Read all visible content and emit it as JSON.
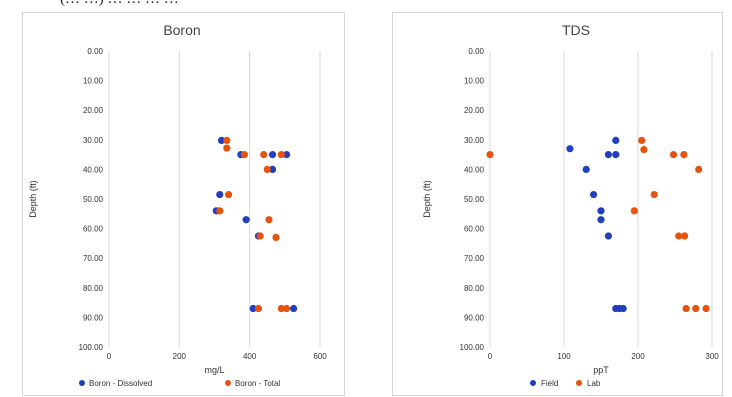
{
  "header_fragment": "(… …) … … … …",
  "colors": {
    "series_a": "#1f3fbf",
    "series_b": "#e5530f",
    "grid": "#d9d9d9"
  },
  "chart_data": [
    {
      "type": "scatter",
      "title": "Boron",
      "xlabel": "mg/L",
      "ylabel": "Depth (ft)",
      "xlim": [
        0,
        600
      ],
      "ylim": [
        100,
        0
      ],
      "y_inverted": true,
      "x_ticks": [
        "0",
        "200",
        "400",
        "600"
      ],
      "y_ticks": [
        "0.00",
        "10.00",
        "20.00",
        "30.00",
        "40.00",
        "50.00",
        "60.00",
        "70.00",
        "80.00",
        "90.00",
        "100.00"
      ],
      "grid": "vertical",
      "legend_position": "bottom",
      "series": [
        {
          "name": "Boron - Dissolved",
          "color": "#1f3fbf",
          "points": [
            [
              320,
              30.2
            ],
            [
              375,
              35
            ],
            [
              465,
              35
            ],
            [
              505,
              35
            ],
            [
              465,
              40
            ],
            [
              315,
              48.5
            ],
            [
              305,
              54
            ],
            [
              390,
              57
            ],
            [
              425,
              62.5
            ],
            [
              410,
              87
            ],
            [
              525,
              87
            ]
          ]
        },
        {
          "name": "Boron - Total",
          "color": "#e5530f",
          "points": [
            [
              335,
              30.2
            ],
            [
              335,
              32.8
            ],
            [
              385,
              35
            ],
            [
              440,
              35
            ],
            [
              490,
              35
            ],
            [
              450,
              40
            ],
            [
              340,
              48.5
            ],
            [
              315,
              54
            ],
            [
              455,
              57
            ],
            [
              430,
              62.5
            ],
            [
              475,
              63
            ],
            [
              425,
              87
            ],
            [
              490,
              87
            ],
            [
              505,
              87
            ]
          ]
        }
      ]
    },
    {
      "type": "scatter",
      "title": "TDS",
      "xlabel": "ppT",
      "ylabel": "Depth (ft)",
      "xlim": [
        0,
        300
      ],
      "ylim": [
        100,
        0
      ],
      "y_inverted": true,
      "x_ticks": [
        "0",
        "100",
        "200",
        "300"
      ],
      "y_ticks": [
        "0.00",
        "10.00",
        "20.00",
        "30.00",
        "40.00",
        "50.00",
        "60.00",
        "70.00",
        "80.00",
        "90.00",
        "100.00"
      ],
      "grid": "vertical",
      "legend_position": "bottom",
      "series": [
        {
          "name": "Field",
          "color": "#1f3fbf",
          "points": [
            [
              170,
              30.2
            ],
            [
              108,
              33
            ],
            [
              160,
              35
            ],
            [
              170,
              35
            ],
            [
              130,
              40
            ],
            [
              140,
              48.5
            ],
            [
              150,
              54
            ],
            [
              150,
              57
            ],
            [
              160,
              62.5
            ],
            [
              170,
              87
            ],
            [
              175,
              87
            ],
            [
              180,
              87
            ]
          ]
        },
        {
          "name": "Lab",
          "color": "#e5530f",
          "points": [
            [
              0,
              35
            ],
            [
              205,
              30.2
            ],
            [
              208,
              33.3
            ],
            [
              248,
              35
            ],
            [
              262,
              35
            ],
            [
              282,
              40
            ],
            [
              222,
              48.5
            ],
            [
              195,
              54
            ],
            [
              255,
              62.5
            ],
            [
              263,
              62.5
            ],
            [
              265,
              87
            ],
            [
              278,
              87
            ],
            [
              292,
              87
            ]
          ]
        }
      ]
    }
  ]
}
